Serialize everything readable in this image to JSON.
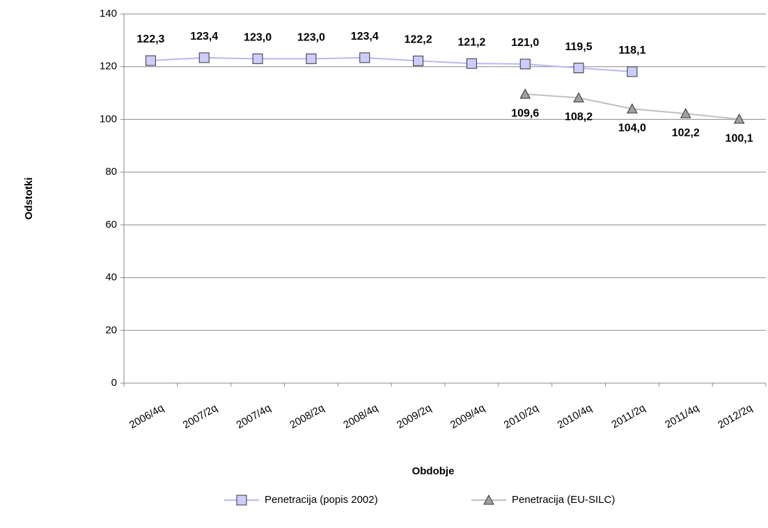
{
  "chart_data": {
    "type": "line",
    "x_label": "Obdobje",
    "y_label": "Odstotki",
    "categories": [
      "2006/4q",
      "2007/2q",
      "2007/4q",
      "2008/2q",
      "2008/4q",
      "2009/2q",
      "2009/4q",
      "2010/2q",
      "2010/4q",
      "2011/2q",
      "2011/4q",
      "2012/2q"
    ],
    "series": [
      {
        "name": "Penetracija (popis 2002)",
        "color": "#b8b8f0",
        "marker": "square",
        "marker_color": "#ccccff",
        "label_side": "above",
        "values": [
          122.3,
          123.4,
          123.0,
          123.0,
          123.4,
          122.2,
          121.2,
          121.0,
          119.5,
          118.1,
          null,
          null
        ],
        "value_labels": [
          "122,3",
          "123,4",
          "123,0",
          "123,0",
          "123,4",
          "122,2",
          "121,2",
          "121,0",
          "119,5",
          "118,1",
          null,
          null
        ]
      },
      {
        "name": "Penetracija (EU-SILC)",
        "color": "#c0c0c0",
        "marker": "triangle",
        "marker_color": "#a0a0a0",
        "label_side": "below",
        "values": [
          null,
          null,
          null,
          null,
          null,
          null,
          null,
          109.6,
          108.2,
          104.0,
          102.2,
          100.1
        ],
        "value_labels": [
          null,
          null,
          null,
          null,
          null,
          null,
          null,
          "109,6",
          "108,2",
          "104,0",
          "102,2",
          "100,1"
        ]
      }
    ],
    "ylim": [
      0,
      140
    ],
    "yticks": [
      0,
      20,
      40,
      60,
      80,
      100,
      120,
      140
    ],
    "grid": true,
    "legend": "bottom"
  }
}
